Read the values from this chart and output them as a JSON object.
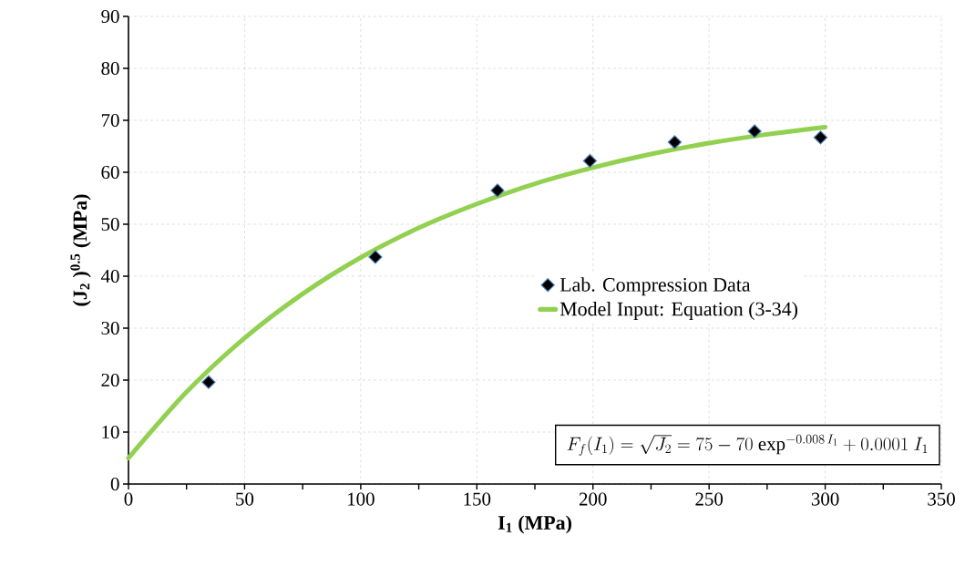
{
  "chart_data": {
    "type": "scatter",
    "xlabel": "I$_{1}$   (MPa)",
    "ylabel": "(J$_{2}$ )$^{0.5}$   (MPa)",
    "xlim": [
      0,
      350
    ],
    "xticks": [
      0,
      50,
      100,
      150,
      200,
      250,
      300,
      350
    ],
    "ylim": [
      0,
      90
    ],
    "yticks": [
      0,
      10,
      20,
      30,
      40,
      50,
      60,
      70,
      80,
      90
    ],
    "grid": true,
    "legend": "right",
    "annotations": [
      "F_f(I_1)=\\sqrt{J_2}=75-70\\ \\mathrm{exp}^{-0.008\\,I_1}+0.0001\\ I_1"
    ],
    "series": [
      {
        "name": "Lab. Compression Data",
        "color": "#000000",
        "marker": "diamond",
        "x": [
          34.5,
          106.3,
          158.9,
          198.7,
          235.2,
          269.6,
          298.0
        ],
        "values": [
          19.6,
          43.7,
          56.5,
          62.2,
          65.8,
          67.9,
          66.7
        ]
      },
      {
        "name": "Model Input: Equation (3-34)",
        "type": "line",
        "color": "#92d050",
        "line_style": "solid",
        "x": [
          0,
          25,
          50,
          75,
          100,
          125,
          150,
          175,
          200,
          225,
          250,
          275,
          300
        ],
        "values": [
          5.0,
          17.7,
          28.1,
          36.6,
          43.6,
          49.3,
          53.9,
          57.8,
          60.9,
          63.5,
          65.6,
          67.3,
          68.7
        ]
      }
    ]
  }
}
